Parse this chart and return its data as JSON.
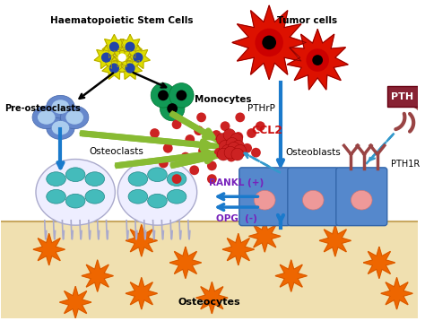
{
  "bg_color": "#ffffff",
  "bone_color": "#f0e0b0",
  "labels": {
    "haematopoietic": "Haematopoietic Stem Cells",
    "tumor": "Tumor cells",
    "pre_osteo": "Pre-osteoclasts",
    "monocytes": "Monocytes",
    "pTHrP": "PTHrP",
    "CCL2": "CCL2",
    "osteoclasts": "Osteoclasts",
    "osteoblasts": "Osteoblasts",
    "PTH1R": "PTH1R",
    "PTH": "PTH",
    "RANKL": "RANKL (+)",
    "OPG": "OPG  (-)",
    "osteocytes": "Osteocytes"
  },
  "colors": {
    "blue_arrow": "#1a7acc",
    "green_arrow": "#88bb33",
    "dashed_arrow": "#3399cc",
    "red_dot": "#cc2222",
    "purple_text": "#7722bb",
    "red_label": "#cc1111",
    "PTH_box": "#882233",
    "osteoblast_blue": "#5588cc",
    "osteoblast_pink": "#ee9999",
    "osteoclast_gray": "#eeeeff",
    "osteoclast_teal": "#44bbbb",
    "osteocyte_orange": "#ee6600",
    "stem_yellow": "#dddd00",
    "stem_blue": "#2244aa",
    "monocyte_green": "#119955",
    "tumor_red": "#dd1100",
    "pth_feather": "#994444"
  }
}
